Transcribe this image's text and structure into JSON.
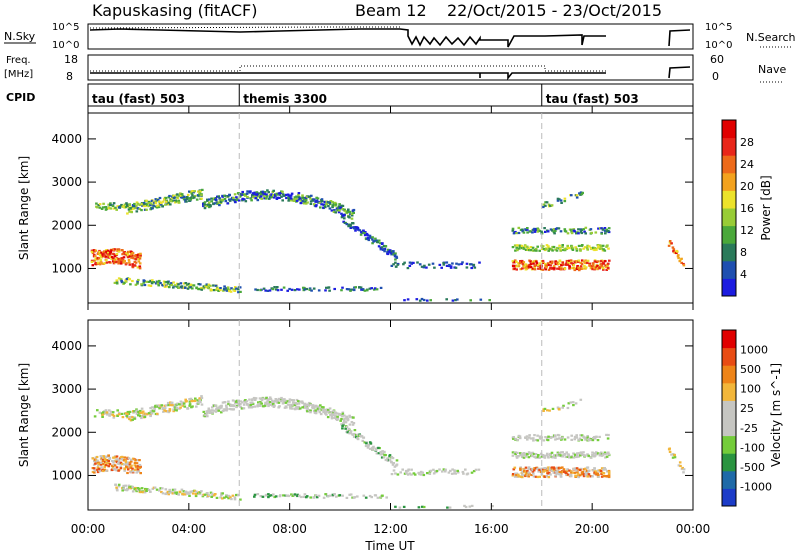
{
  "header": {
    "station": "Kapuskasing (fitACF)",
    "beam": "Beam 12",
    "date_range": "22/Oct/2015 - 23/Oct/2015"
  },
  "strip_nsky": {
    "label": "N.Sky",
    "left_ticks": [
      "10^5",
      "10^0"
    ],
    "right_ticks": [
      "10^5",
      "10^0"
    ],
    "right_label": "N.Search"
  },
  "strip_freq": {
    "label_top": "Freq.",
    "label_bottom": "[MHz]",
    "left_ticks": [
      "18",
      "8"
    ],
    "right_ticks": [
      "60",
      "0"
    ],
    "right_label": "Nave"
  },
  "cpid": {
    "label": "CPID",
    "segments": [
      {
        "name": "tau (fast) 503",
        "start_hour": 0
      },
      {
        "name": "themis 3300",
        "start_hour": 6
      },
      {
        "name": "tau (fast) 503",
        "start_hour": 18
      }
    ]
  },
  "chart_data": [
    {
      "type": "heatmap",
      "name": "power",
      "ylabel": "Slant Range [km]",
      "yticks": [
        1000,
        2000,
        3000,
        4000
      ],
      "ylim": [
        200,
        4600
      ],
      "xlim_hours": [
        0,
        24
      ],
      "colorbar": {
        "label": "Power [dB]",
        "ticks": [
          "4",
          "8",
          "12",
          "16",
          "20",
          "24",
          "28"
        ],
        "colors": [
          "#1c1ce0",
          "#1f4fb0",
          "#2a7a5a",
          "#4aa83a",
          "#98cc36",
          "#ece22a",
          "#f3a21e",
          "#ed6a1a",
          "#e8261a",
          "#e00000"
        ]
      }
    },
    {
      "type": "heatmap",
      "name": "velocity",
      "ylabel": "Slant Range [km]",
      "yticks": [
        1000,
        2000,
        3000,
        4000
      ],
      "ylim": [
        200,
        4600
      ],
      "xlim_hours": [
        0,
        24
      ],
      "colorbar": {
        "label": "Velocity [m s^-1]",
        "ticks": [
          "1000",
          "500",
          "100",
          "25",
          "-25",
          "-100",
          "-500",
          "-1000"
        ],
        "colors": [
          "#1c3cc8",
          "#1f6aa8",
          "#2a9440",
          "#74cc3a",
          "#c6c6c2",
          "#c6c6c2",
          "#f2b63a",
          "#ee8418",
          "#e84c14",
          "#e00000"
        ]
      }
    }
  ],
  "xaxis": {
    "label": "Time UT",
    "ticks": [
      "00:00",
      "04:00",
      "08:00",
      "12:00",
      "16:00",
      "20:00",
      "00:00"
    ],
    "tick_hours": [
      0,
      4,
      8,
      12,
      16,
      20,
      24
    ]
  }
}
